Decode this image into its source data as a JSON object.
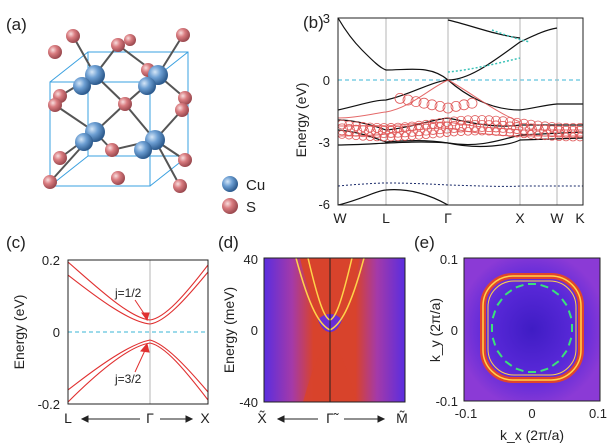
{
  "figure": {
    "panels": {
      "a": {
        "label": "(a)",
        "legend": [
          {
            "name": "Cu",
            "color": "#5b8fc7"
          },
          {
            "name": "S",
            "color": "#d97b7f"
          }
        ]
      },
      "b": {
        "label": "(b)",
        "ylabel": "Energy (eV)",
        "yticks": [
          "3",
          "0",
          "-3",
          "-6"
        ],
        "xticks": [
          "W",
          "L",
          "Γ",
          "X",
          "W",
          "K"
        ]
      },
      "c": {
        "label": "(c)",
        "ylabel": "Energy (eV)",
        "yticks": [
          "0.2",
          "0",
          "-0.2"
        ],
        "xticks": [
          "L",
          "Γ",
          "X"
        ],
        "annotations": [
          "j=1/2",
          "j=3/2"
        ]
      },
      "d": {
        "label": "(d)",
        "ylabel": "Energy (meV)",
        "yticks": [
          "40",
          "0",
          "-40"
        ],
        "xticks": [
          "X̃",
          "Γ̃",
          "M̃"
        ]
      },
      "e": {
        "label": "(e)",
        "ylabel": "k_y (2π/a)",
        "xlabel": "k_x (2π/a)",
        "yticks": [
          "0.1",
          "0",
          "-0.1"
        ],
        "xticks": [
          "-0.1",
          "0",
          "0.1"
        ]
      }
    }
  },
  "chart_data": [
    {
      "type": "line",
      "panel": "b",
      "ylabel": "Energy (eV)",
      "ylim": [
        -6,
        3
      ],
      "categories": [
        "W",
        "L",
        "Γ",
        "X",
        "W",
        "K"
      ],
      "x": [
        0,
        1,
        2,
        3,
        3.5,
        3.85
      ],
      "fermi_level": 0
    },
    {
      "type": "line",
      "panel": "c",
      "ylabel": "Energy (eV)",
      "ylim": [
        -0.2,
        0.2
      ],
      "categories": [
        "L",
        "Γ",
        "X"
      ],
      "series": [
        {
          "name": "j=1/2",
          "values": [
            0.2,
            0.02,
            0.2
          ]
        },
        {
          "name": "j=3/2",
          "values": [
            -0.2,
            -0.02,
            -0.2
          ]
        }
      ]
    },
    {
      "type": "heatmap",
      "panel": "d",
      "ylabel": "Energy (meV)",
      "ylim": [
        -40,
        40
      ],
      "categories": [
        "X̃",
        "Γ̃",
        "M̃"
      ]
    },
    {
      "type": "heatmap",
      "panel": "e",
      "xlabel": "k_x (2π/a)",
      "ylabel": "k_y (2π/a)",
      "xlim": [
        -0.1,
        0.1
      ],
      "ylim": [
        -0.1,
        0.1
      ]
    }
  ]
}
